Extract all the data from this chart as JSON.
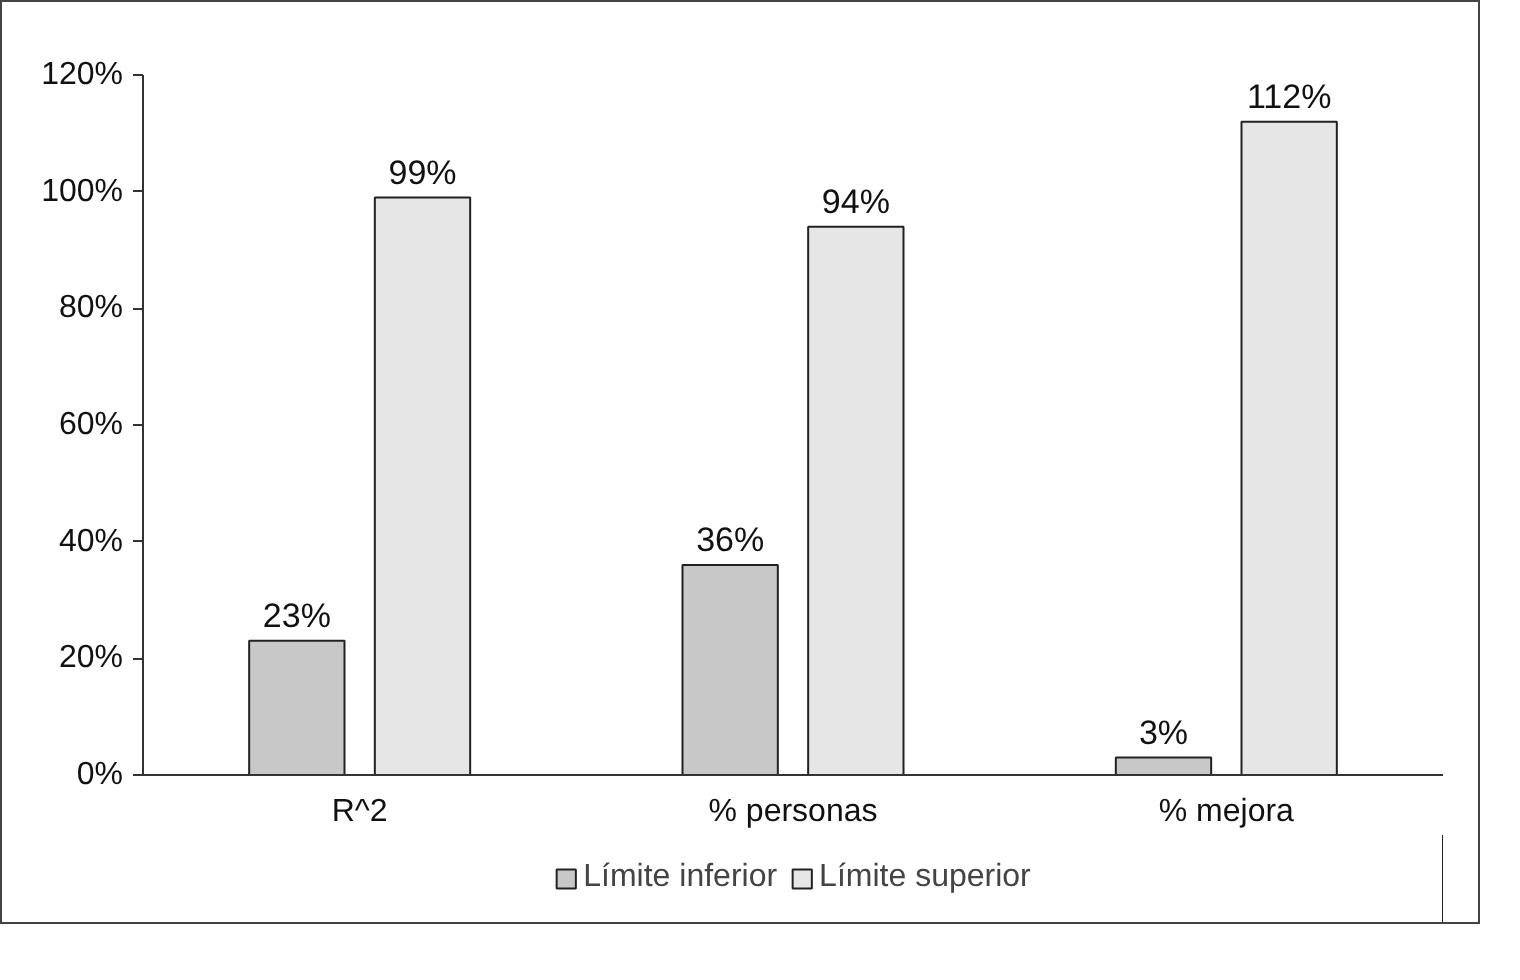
{
  "chart_data": {
    "type": "bar",
    "categories": [
      "R^2",
      "% personas",
      "% mejora"
    ],
    "series": [
      {
        "name": "Límite inferior",
        "color": "#c8c8c8",
        "values": [
          23,
          36,
          3
        ],
        "value_labels": [
          "23%",
          "36%",
          "3%"
        ]
      },
      {
        "name": "Límite superior",
        "color": "#e6e6e6",
        "values": [
          99,
          94,
          112
        ],
        "value_labels": [
          "99%",
          "94%",
          "112%"
        ]
      }
    ],
    "ylim": [
      0,
      120
    ],
    "yticks": [
      {
        "value": 0,
        "label": "0%"
      },
      {
        "value": 20,
        "label": "20%"
      },
      {
        "value": 40,
        "label": "40%"
      },
      {
        "value": 60,
        "label": "60%"
      },
      {
        "value": 80,
        "label": "80%"
      },
      {
        "value": 100,
        "label": "100%"
      },
      {
        "value": 120,
        "label": "120%"
      }
    ],
    "grid": false,
    "legend": "bottom"
  }
}
